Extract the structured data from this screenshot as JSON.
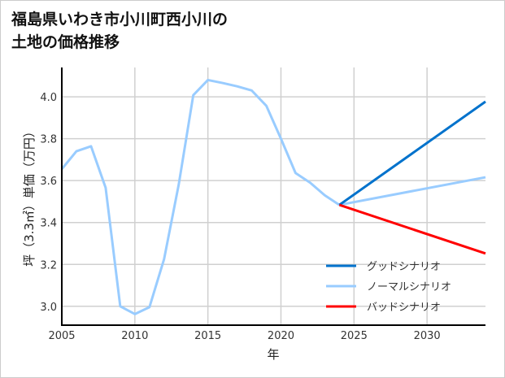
{
  "chart_data": {
    "type": "line",
    "title_lines": [
      "福島県いわき市小川町西小川の",
      "土地の価格推移"
    ],
    "xlabel": "年",
    "ylabel": "坪（3.3㎡）単価（万円）",
    "xlim": [
      2005,
      2034
    ],
    "ylim": [
      2.91,
      4.14
    ],
    "xticks": [
      2005,
      2010,
      2015,
      2020,
      2025,
      2030
    ],
    "yticks": [
      3.0,
      3.2,
      3.4,
      3.6,
      3.8,
      4.0
    ],
    "ytick_labels": [
      "3.0",
      "3.2",
      "3.4",
      "3.6",
      "3.8",
      "4.0"
    ],
    "grid": true,
    "legend_position": "bottom-right",
    "historical": {
      "x": [
        2005,
        2006,
        2007,
        2008,
        2009,
        2010,
        2011,
        2012,
        2013,
        2014,
        2015,
        2016,
        2017,
        2018,
        2019,
        2020,
        2021,
        2022,
        2023,
        2024
      ],
      "y": [
        3.655,
        3.74,
        3.764,
        3.566,
        3.0,
        2.963,
        2.996,
        3.225,
        3.58,
        4.008,
        4.08,
        4.066,
        4.05,
        4.03,
        3.957,
        3.8,
        3.636,
        3.59,
        3.53,
        3.484
      ]
    },
    "series": [
      {
        "name": "グッドシナリオ",
        "color": "#0072cc",
        "x": [
          2024,
          2034
        ],
        "y": [
          3.484,
          3.977
        ]
      },
      {
        "name": "ノーマルシナリオ",
        "color": "#99ccff",
        "x": [
          2024,
          2034
        ],
        "y": [
          3.484,
          3.616
        ]
      },
      {
        "name": "バッドシナリオ",
        "color": "#ff0000",
        "x": [
          2024,
          2034
        ],
        "y": [
          3.484,
          3.252
        ]
      }
    ]
  }
}
